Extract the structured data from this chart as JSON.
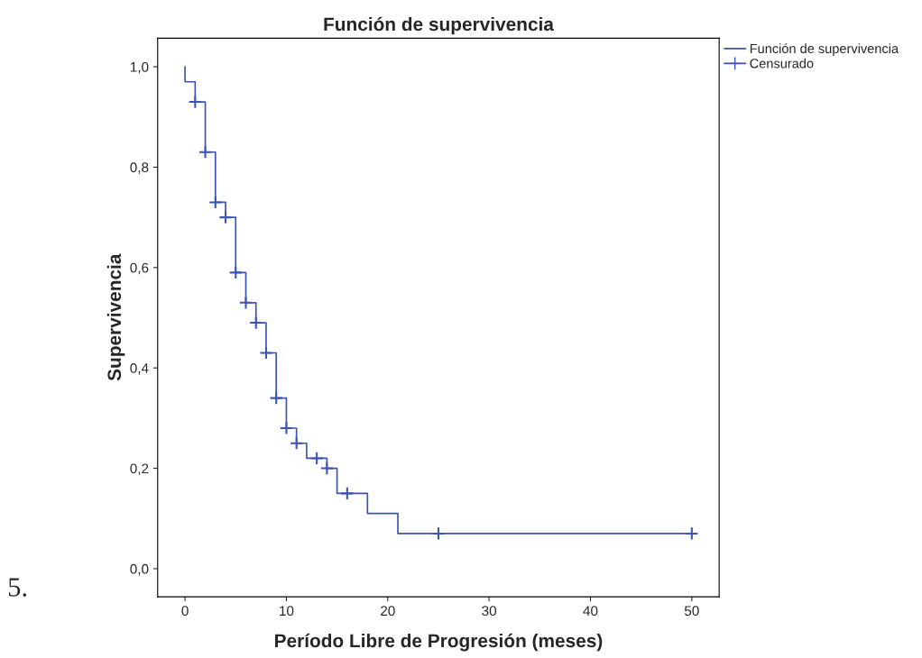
{
  "chart_data": {
    "type": "step",
    "title": "Función de supervivencia",
    "xlabel": "Período Libre de Progresión (meses)",
    "ylabel": "Supervivencia",
    "series": [
      {
        "name": "Función de supervivencia",
        "color": "#3c54b4",
        "x": [
          0,
          0,
          1,
          2,
          3,
          4,
          5,
          6,
          7,
          8,
          9,
          10,
          11,
          12,
          14,
          15,
          18,
          21,
          50
        ],
        "values": [
          1.0,
          0.97,
          0.93,
          0.83,
          0.73,
          0.7,
          0.59,
          0.53,
          0.49,
          0.43,
          0.34,
          0.28,
          0.25,
          0.22,
          0.2,
          0.15,
          0.11,
          0.07,
          0.07
        ]
      },
      {
        "name": "Censurado",
        "type": "scatter",
        "marker": "cross",
        "color": "#3c54b4",
        "x": [
          1,
          2,
          3,
          4,
          5,
          6,
          7,
          8,
          9,
          10,
          11,
          13,
          14,
          16,
          25,
          50
        ],
        "values": [
          0.93,
          0.83,
          0.73,
          0.7,
          0.59,
          0.53,
          0.49,
          0.43,
          0.34,
          0.28,
          0.25,
          0.22,
          0.2,
          0.15,
          0.07,
          0.07
        ]
      }
    ],
    "xlim": [
      -2.7,
      52.7
    ],
    "xticks": [
      0,
      10,
      20,
      30,
      40,
      50
    ],
    "ylim": [
      -0.056,
      1.057
    ],
    "yticks": [
      {
        "value": 0,
        "label": "0,0"
      },
      {
        "value": 0.2,
        "label": "0,2"
      },
      {
        "value": 0.4,
        "label": "0,4"
      },
      {
        "value": 0.6,
        "label": "0,6"
      },
      {
        "value": 0.8,
        "label": "0,8"
      },
      {
        "value": 1.0,
        "label": "1,0"
      }
    ],
    "legend": "top right",
    "grid": false,
    "annotations": [
      "5."
    ]
  }
}
